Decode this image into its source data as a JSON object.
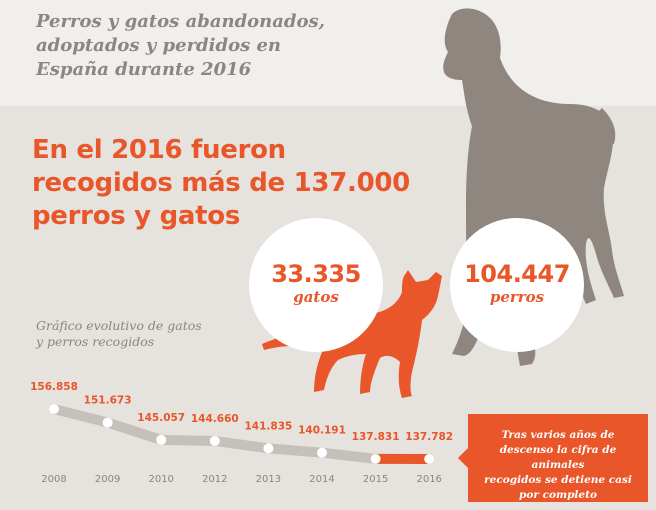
{
  "header": {
    "subtitle": "Perros y gatos abandonados,\nadoptados y perdidos en\nEspaña durante 2016",
    "headline": "En el 2016 fueron\nrecogidos más de 137.000\nperros y gatos"
  },
  "stats": {
    "gatos": {
      "value": "33.335",
      "label": "gatos"
    },
    "perros": {
      "value": "104.447",
      "label": "perros"
    }
  },
  "colors": {
    "accent": "#e8562a",
    "dog_silhouette": "#8f8680",
    "line": "#c6c0ba",
    "text_muted": "#8c8580",
    "background": "#e6e2dd"
  },
  "icons": {
    "dog": "dog-silhouette-icon",
    "cat": "cat-silhouette-icon"
  },
  "chart_data": {
    "type": "line",
    "title": "Gráfico evolutivo de gatos\ny perros recogidos",
    "x": [
      "2008",
      "2009",
      "2010",
      "2012",
      "2013",
      "2014",
      "2015",
      "2016"
    ],
    "y": [
      156858,
      151673,
      145057,
      144660,
      141835,
      140191,
      137831,
      137782
    ],
    "labels": [
      "156.858",
      "151.673",
      "145.057",
      "144.660",
      "141.835",
      "140.191",
      "137.831",
      "137.782"
    ],
    "highlight_segment": [
      "2015",
      "2016"
    ],
    "grid": false
  },
  "note": {
    "text": "Tras varios años de\ndescenso la cifra de animales\nrecogidos se detiene casi\npor completo"
  }
}
